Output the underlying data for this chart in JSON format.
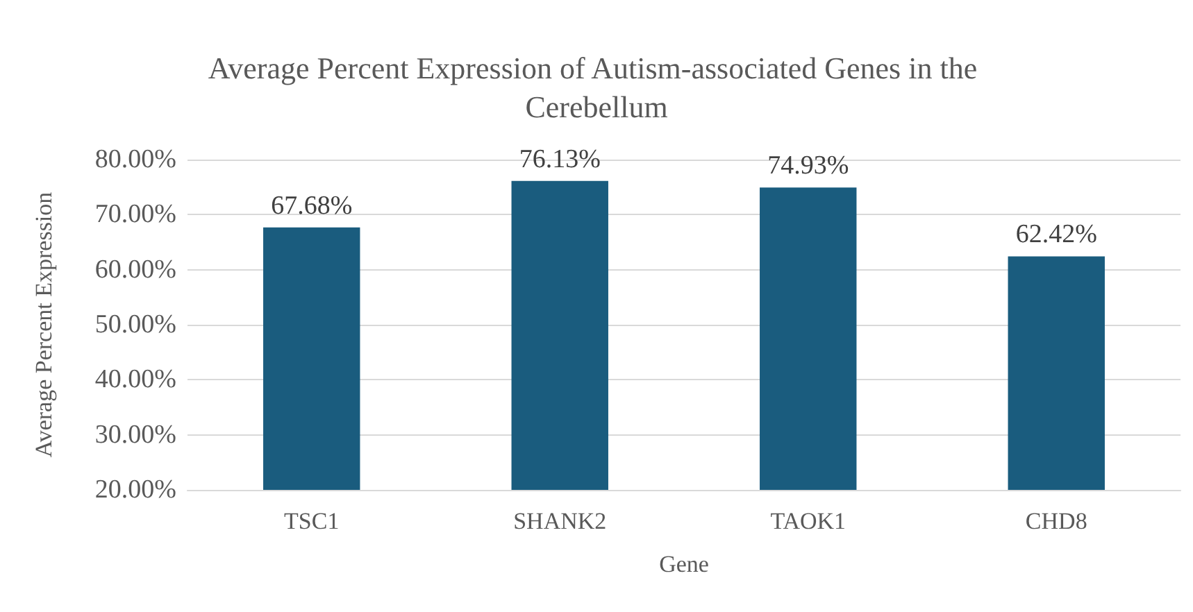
{
  "chart_data": {
    "type": "bar",
    "title": "Average Percent Expression of Autism-associated Genes in the Cerebellum",
    "xlabel": "Gene",
    "ylabel": "Average Percent Expression",
    "categories": [
      "TSC1",
      "SHANK2",
      "TAOK1",
      "CHD8"
    ],
    "values": [
      67.68,
      76.13,
      74.93,
      62.42
    ],
    "value_labels": [
      "67.68%",
      "76.13%",
      "74.93%",
      "62.42%"
    ],
    "color": "#1a5c7e",
    "ylim": [
      20,
      80
    ],
    "yticks": [
      {
        "value": 20,
        "label": "20.00%"
      },
      {
        "value": 30,
        "label": "30.00%"
      },
      {
        "value": 40,
        "label": "40.00%"
      },
      {
        "value": 50,
        "label": "50.00%"
      },
      {
        "value": 60,
        "label": "60.00%"
      },
      {
        "value": 70,
        "label": "70.00%"
      },
      {
        "value": 80,
        "label": "80.00%"
      }
    ],
    "grid": true
  }
}
